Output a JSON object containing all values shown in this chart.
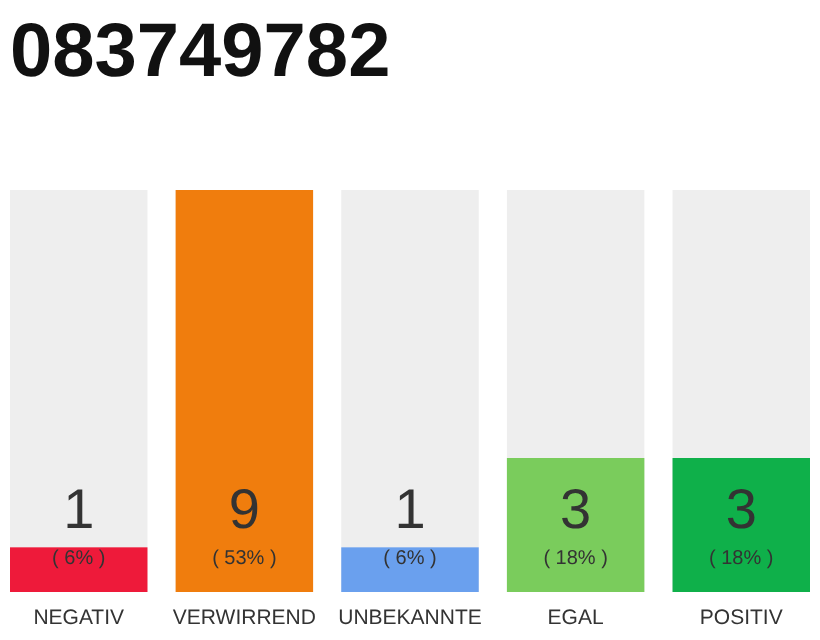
{
  "chart_data": {
    "type": "bar",
    "title": "083749782",
    "categories": [
      "NEGATIV",
      "VERWIRREND",
      "UNBEKANNTE",
      "EGAL",
      "POSITIV"
    ],
    "values": [
      1,
      9,
      1,
      3,
      3
    ],
    "colors": [
      "#ee1a3a",
      "#f07d0d",
      "#6aa0ee",
      "#7acc5c",
      "#0fb04a"
    ],
    "tick_labels": "x",
    "data_labels": true,
    "annotations": [
      "( 6% )",
      "( 53% )",
      "( 6% )",
      "( 18% )",
      "( 18% )"
    ]
  }
}
